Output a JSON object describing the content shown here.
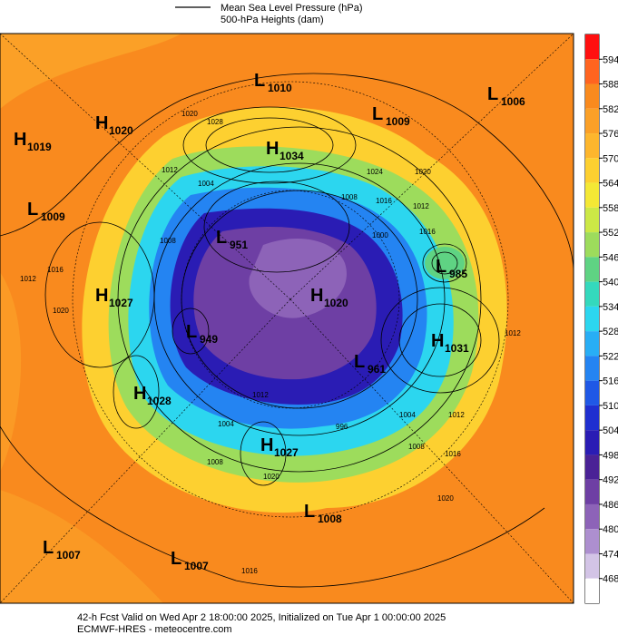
{
  "legend": {
    "items": [
      "Mean Sea Level Pressure (hPa)",
      "500-hPa Heights (dam)"
    ]
  },
  "colorbar": {
    "levels": [
      594,
      588,
      582,
      576,
      570,
      564,
      558,
      552,
      546,
      540,
      534,
      528,
      522,
      516,
      510,
      504,
      498,
      492,
      486,
      480,
      474,
      468
    ],
    "colors": [
      "#ff1010",
      "#ff6420",
      "#f98a1e",
      "#fba027",
      "#fdb62d",
      "#fdd030",
      "#f4e835",
      "#cce846",
      "#9ddc5c",
      "#5fd383",
      "#34d9bd",
      "#2cd6ef",
      "#28aef5",
      "#2484f2",
      "#1f58e6",
      "#1f2fd0",
      "#2a1cb4",
      "#4a2296",
      "#6e3fa4",
      "#8d63b8",
      "#ad8fcf",
      "#d3c4e6",
      "#ffffff"
    ]
  },
  "centers": [
    {
      "type": "L",
      "value": 1010
    },
    {
      "type": "H",
      "value": 1020
    },
    {
      "type": "L",
      "value": 1009
    },
    {
      "type": "L",
      "value": 1006
    },
    {
      "type": "H",
      "value": 1019
    },
    {
      "type": "H",
      "value": 1034
    },
    {
      "type": "L",
      "value": 1009
    },
    {
      "type": "L",
      "value": 951
    },
    {
      "type": "L",
      "value": 985
    },
    {
      "type": "H",
      "value": 1027
    },
    {
      "type": "H",
      "value": 1020
    },
    {
      "type": "L",
      "value": 949
    },
    {
      "type": "H",
      "value": 1031
    },
    {
      "type": "L",
      "value": 961
    },
    {
      "type": "H",
      "value": 1028
    },
    {
      "type": "H",
      "value": 1027
    },
    {
      "type": "L",
      "value": 1008
    },
    {
      "type": "L",
      "value": 1007
    },
    {
      "type": "L",
      "value": 1007
    }
  ],
  "contour_labels": [
    1020,
    1028,
    1012,
    1004,
    1024,
    1020,
    1008,
    1016,
    1012,
    1000,
    1008,
    1012,
    1016,
    1020,
    1016,
    1012,
    1004,
    1008,
    996,
    1004,
    1012,
    1008,
    1016,
    1020,
    1020,
    1012,
    1016
  ],
  "footer": {
    "line1": "42-h Fcst Valid on Wed Apr  2 18:00:00 2025, Initialized on Tue Apr  1 00:00:00 2025",
    "line2": "ECMWF-HRES - meteocentre.com"
  }
}
